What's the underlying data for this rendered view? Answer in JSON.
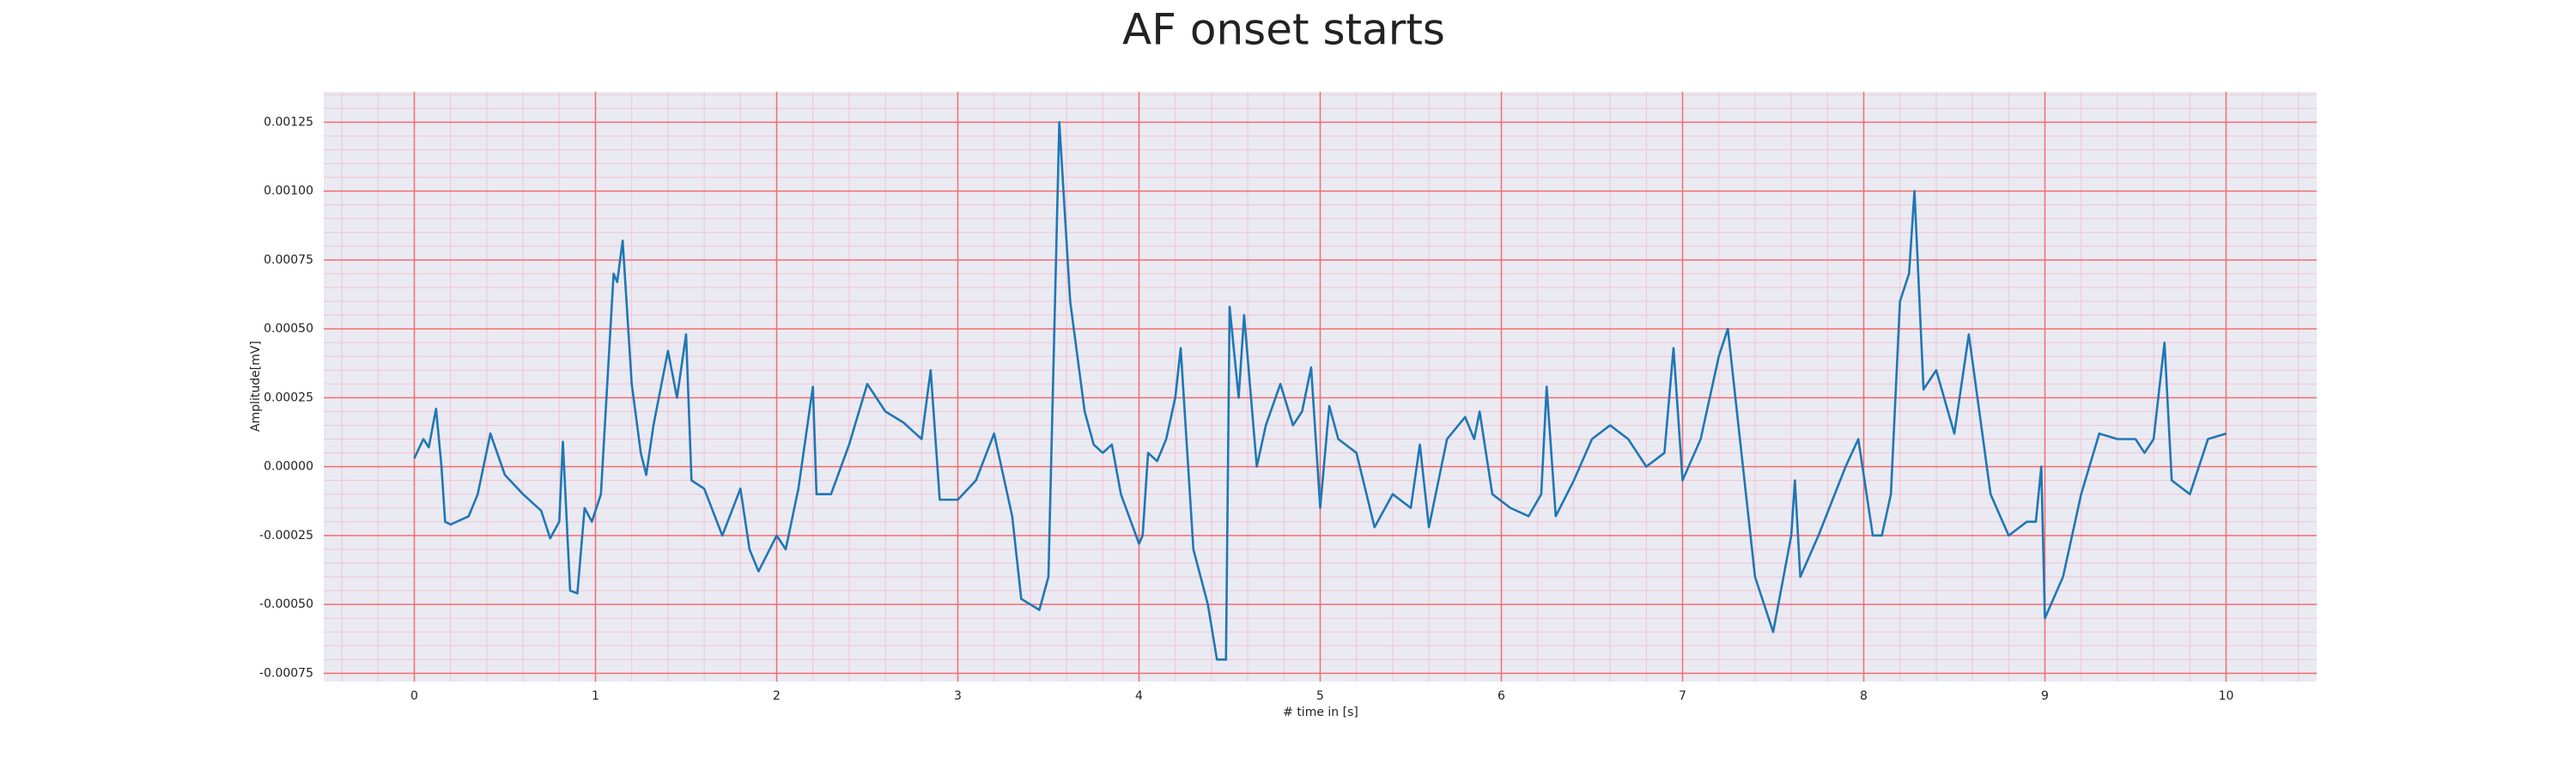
{
  "chart_data": {
    "type": "line",
    "title": "AF onset starts",
    "xlabel": "# time in [s]",
    "ylabel": "Amplitude[mV]",
    "color": "#1f77b4",
    "background": "#eaeaf2",
    "grid": true,
    "grid_color": "#f26d6d",
    "minor_grid": true,
    "minor_grid_color": "#f3c3d3",
    "minor_divisions": 5,
    "xlim": [
      -0.5,
      10.5
    ],
    "ylim": [
      -0.00078,
      0.00136
    ],
    "xticks": [
      0,
      1,
      2,
      3,
      4,
      5,
      6,
      7,
      8,
      9,
      10
    ],
    "yticks": [
      -0.00075,
      {
        "value": -0.0005,
        "label": "-0.00050"
      },
      -0.00025,
      {
        "value": 0,
        "label": "0.00000"
      },
      0.00025,
      {
        "value": 0.0005,
        "label": "0.00050"
      },
      0.00075,
      {
        "value": 0.001,
        "label": "0.00100"
      },
      0.00125
    ],
    "x": [
      0,
      0.05,
      0.08,
      0.12,
      0.15,
      0.17,
      0.2,
      0.3,
      0.35,
      0.42,
      0.5,
      0.6,
      0.7,
      0.75,
      0.8,
      0.82,
      0.86,
      0.9,
      0.94,
      0.98,
      1.03,
      1.1,
      1.12,
      1.15,
      1.2,
      1.25,
      1.28,
      1.32,
      1.4,
      1.45,
      1.5,
      1.53,
      1.6,
      1.7,
      1.8,
      1.85,
      1.9,
      2.0,
      2.05,
      2.12,
      2.2,
      2.22,
      2.3,
      2.4,
      2.5,
      2.6,
      2.7,
      2.8,
      2.85,
      2.9,
      3.0,
      3.1,
      3.2,
      3.3,
      3.35,
      3.45,
      3.5,
      3.56,
      3.62,
      3.7,
      3.75,
      3.8,
      3.85,
      3.9,
      4.0,
      4.02,
      4.05,
      4.1,
      4.15,
      4.2,
      4.23,
      4.3,
      4.38,
      4.43,
      4.48,
      4.5,
      4.55,
      4.58,
      4.65,
      4.7,
      4.78,
      4.85,
      4.9,
      4.95,
      5.0,
      5.05,
      5.1,
      5.2,
      5.3,
      5.4,
      5.5,
      5.55,
      5.6,
      5.7,
      5.8,
      5.85,
      5.88,
      5.95,
      6.05,
      6.15,
      6.22,
      6.25,
      6.3,
      6.4,
      6.5,
      6.6,
      6.7,
      6.8,
      6.9,
      6.95,
      7.0,
      7.1,
      7.2,
      7.25,
      7.3,
      7.4,
      7.5,
      7.6,
      7.62,
      7.65,
      7.75,
      7.9,
      7.97,
      8.05,
      8.1,
      8.15,
      8.2,
      8.25,
      8.28,
      8.33,
      8.4,
      8.5,
      8.58,
      8.7,
      8.8,
      8.9,
      8.95,
      8.98,
      9.0,
      9.1,
      9.2,
      9.3,
      9.4,
      9.5,
      9.55,
      9.6,
      9.66,
      9.7,
      9.8,
      9.9,
      10.0
    ],
    "values": [
      3e-05,
      0.0001,
      7e-05,
      0.00021,
      0.0,
      -0.0002,
      -0.00021,
      -0.00018,
      -0.0001,
      0.00012,
      -3e-05,
      -0.0001,
      -0.00016,
      -0.00026,
      -0.0002,
      9e-05,
      -0.00045,
      -0.00046,
      -0.00015,
      -0.0002,
      -0.0001,
      0.0007,
      0.00067,
      0.00082,
      0.0003,
      5e-05,
      -3e-05,
      0.00015,
      0.00042,
      0.00025,
      0.00048,
      -5e-05,
      -8e-05,
      -0.00025,
      -8e-05,
      -0.0003,
      -0.00038,
      -0.00025,
      -0.0003,
      -8e-05,
      0.00029,
      -0.0001,
      -0.0001,
      8e-05,
      0.0003,
      0.0002,
      0.00016,
      0.0001,
      0.00035,
      -0.00012,
      -0.00012,
      -5e-05,
      0.00012,
      -0.00018,
      -0.00048,
      -0.00052,
      -0.0004,
      0.00125,
      0.0006,
      0.0002,
      8e-05,
      5e-05,
      8e-05,
      -0.0001,
      -0.00028,
      -0.00025,
      5e-05,
      2e-05,
      0.0001,
      0.00025,
      0.00043,
      -0.0003,
      -0.0005,
      -0.0007,
      -0.0007,
      0.00058,
      0.00025,
      0.00055,
      0.0,
      0.00015,
      0.0003,
      0.00015,
      0.0002,
      0.00036,
      -0.00015,
      0.00022,
      0.0001,
      5e-05,
      -0.00022,
      -0.0001,
      -0.00015,
      8e-05,
      -0.00022,
      0.0001,
      0.00018,
      0.0001,
      0.0002,
      -0.0001,
      -0.00015,
      -0.00018,
      -0.0001,
      0.00029,
      -0.00018,
      -5e-05,
      0.0001,
      0.00015,
      0.0001,
      0.0,
      5e-05,
      0.00043,
      -5e-05,
      0.0001,
      0.0004,
      0.0005,
      0.0002,
      -0.0004,
      -0.0006,
      -0.00025,
      -5e-05,
      -0.0004,
      -0.00025,
      0.0,
      0.0001,
      -0.00025,
      -0.00025,
      -0.0001,
      0.0006,
      0.0007,
      0.001,
      0.00028,
      0.00035,
      0.00012,
      0.00048,
      -0.0001,
      -0.00025,
      -0.0002,
      -0.0002,
      0.0,
      -0.00055,
      -0.0004,
      -0.0001,
      0.00012,
      0.0001,
      0.0001,
      5e-05,
      0.0001,
      0.00045,
      -5e-05,
      -0.0001,
      0.0001,
      0.00012
    ]
  }
}
